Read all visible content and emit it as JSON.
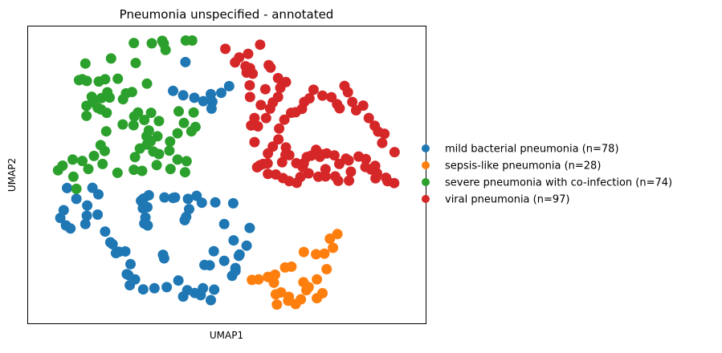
{
  "chart_data": {
    "type": "scatter",
    "title": "Pneumonia unspecified - annotated",
    "xlabel": "UMAP1",
    "ylabel": "UMAP2",
    "xlim": [
      0,
      100
    ],
    "ylim": [
      0,
      100
    ],
    "grid": false,
    "ticks_shown": false,
    "legend_position": "right, outside plot",
    "series": [
      {
        "name": "mild bacterial pneumonia (n=78)",
        "color": "#1f77b4",
        "points": [
          [
            38.9,
            90.6
          ],
          [
            35.6,
            80.2
          ],
          [
            38.3,
            78.6
          ],
          [
            41.3,
            77.7
          ],
          [
            43.7,
            76.5
          ],
          [
            45.7,
            79.0
          ],
          [
            46.1,
            76.3
          ],
          [
            45.9,
            73.8
          ],
          [
            48.5,
            79.5
          ],
          [
            50.6,
            81.9
          ],
          [
            7.2,
            45.1
          ],
          [
            9.7,
            41.2
          ],
          [
            6.3,
            37.1
          ],
          [
            5.4,
            34.3
          ],
          [
            6.9,
            31.6
          ],
          [
            8.1,
            30.5
          ],
          [
            12.6,
            38.8
          ],
          [
            12.5,
            35.1
          ],
          [
            12.1,
            32.1
          ],
          [
            14.0,
            45.2
          ],
          [
            15.6,
            42.8
          ],
          [
            15.4,
            35.5
          ],
          [
            17.4,
            29.4
          ],
          [
            19.4,
            24.8
          ],
          [
            18.8,
            25.5
          ],
          [
            20.3,
            21.6
          ],
          [
            21.1,
            22.1
          ],
          [
            22.8,
            22.2
          ],
          [
            27.0,
            40.5
          ],
          [
            27.7,
            41.3
          ],
          [
            27.5,
            37.8
          ],
          [
            28.7,
            38.2
          ],
          [
            29.1,
            42.5
          ],
          [
            28.2,
            34.5
          ],
          [
            27.9,
            32.3
          ],
          [
            28.8,
            31.6
          ],
          [
            33.3,
            41.7
          ],
          [
            35.6,
            41.5
          ],
          [
            36.1,
            41.7
          ],
          [
            39.6,
            41.2
          ],
          [
            41.9,
            42.3
          ],
          [
            39.9,
            37.5
          ],
          [
            39.1,
            34.7
          ],
          [
            38.7,
            33.5
          ],
          [
            43.3,
            39.8
          ],
          [
            46.9,
            39.9
          ],
          [
            51.7,
            39.6
          ],
          [
            49.3,
            32.1
          ],
          [
            51.8,
            26.2
          ],
          [
            53.2,
            20.6
          ],
          [
            55.3,
            24.3
          ],
          [
            56.1,
            30.7
          ],
          [
            53.4,
            21.1
          ],
          [
            52.3,
            16.2
          ],
          [
            52.3,
            15.2
          ],
          [
            51.4,
            13.4
          ],
          [
            49.3,
            18.8
          ],
          [
            46.5,
            22.3
          ],
          [
            44.0,
            17.3
          ],
          [
            45.4,
            17.2
          ],
          [
            43.6,
            8.9
          ],
          [
            45.7,
            4.6
          ],
          [
            46.6,
            8.4
          ],
          [
            43.0,
            6.4
          ],
          [
            41.4,
            7.2
          ],
          [
            39.4,
            8.2
          ],
          [
            38.3,
            5.9
          ],
          [
            33.9,
            9.3
          ],
          [
            30.6,
            8.9
          ],
          [
            27.6,
            8.5
          ],
          [
            24.0,
            10.0
          ],
          [
            23.6,
            13.7
          ],
          [
            24.2,
            17.6
          ],
          [
            23.2,
            14.0
          ],
          [
            25.4,
            12.1
          ],
          [
            33.2,
            19.7
          ],
          [
            32.9,
            21.0
          ],
          [
            37.0,
            11.7
          ]
        ]
      },
      {
        "name": "sepsis-like pneumonia (n=28)",
        "color": "#ff7f0e",
        "points": [
          [
            77.6,
            26.8
          ],
          [
            79.6,
            28.5
          ],
          [
            78.4,
            23.5
          ],
          [
            76.1,
            21.4
          ],
          [
            73.9,
            21.2
          ],
          [
            70.6,
            22.0
          ],
          [
            67.3,
            16.7
          ],
          [
            65.6,
            16.4
          ],
          [
            62.9,
            13.8
          ],
          [
            61.2,
            12.9
          ],
          [
            58.5,
            12.1
          ],
          [
            56.7,
            11.9
          ],
          [
            61.0,
            13.0
          ],
          [
            62.6,
            10.9
          ],
          [
            64.5,
            7.4
          ],
          [
            66.6,
            5.8
          ],
          [
            66.4,
            4.4
          ],
          [
            63.1,
            6.7
          ],
          [
            63.4,
            3.0
          ],
          [
            68.4,
            3.2
          ],
          [
            69.8,
            4.9
          ],
          [
            70.5,
            11.1
          ],
          [
            71.9,
            9.3
          ],
          [
            71.3,
            8.2
          ],
          [
            74.1,
            12.1
          ],
          [
            75.6,
            7.1
          ],
          [
            74.1,
            5.3
          ],
          [
            76.7,
            15.8
          ]
        ]
      },
      {
        "name": "severe pneumonia with co-infection (n=74)",
        "color": "#2ca02c",
        "points": [
          [
            25.1,
            97.5
          ],
          [
            29.9,
            97.4
          ],
          [
            32.7,
            98.3
          ],
          [
            33.6,
            95.0
          ],
          [
            33.1,
            97.3
          ],
          [
            39.0,
            98.4
          ],
          [
            40.7,
            98.4
          ],
          [
            12.1,
            90.1
          ],
          [
            19.0,
            91.9
          ],
          [
            25.6,
            90.3
          ],
          [
            11.3,
            84.4
          ],
          [
            10.4,
            84.1
          ],
          [
            12.5,
            83.8
          ],
          [
            15.7,
            83.6
          ],
          [
            17.4,
            84.4
          ],
          [
            20.8,
            84.6
          ],
          [
            22.2,
            77.2
          ],
          [
            23.0,
            79.3
          ],
          [
            24.6,
            79.8
          ],
          [
            28.6,
            82.8
          ],
          [
            26.2,
            72.4
          ],
          [
            29.7,
            72.3
          ],
          [
            25.2,
            71.0
          ],
          [
            22.1,
            68.1
          ],
          [
            25.0,
            67.8
          ],
          [
            27.9,
            69.7
          ],
          [
            31.8,
            69.3
          ],
          [
            29.1,
            65.9
          ],
          [
            28.5,
            63.8
          ],
          [
            29.6,
            62.0
          ],
          [
            31.4,
            63.8
          ],
          [
            28.6,
            60.8
          ],
          [
            26.7,
            59.4
          ],
          [
            30.3,
            58.3
          ],
          [
            31.8,
            57.4
          ],
          [
            34.6,
            58.6
          ],
          [
            34.8,
            61.9
          ],
          [
            36.8,
            64.9
          ],
          [
            38.5,
            68.6
          ],
          [
            41.6,
            67.2
          ],
          [
            41.1,
            72.4
          ],
          [
            37.1,
            72.8
          ],
          [
            40.5,
            65.6
          ],
          [
            36.8,
            55.4
          ],
          [
            39.2,
            54.8
          ],
          [
            38.8,
            50.8
          ],
          [
            34.9,
            52.0
          ],
          [
            31.2,
            53.4
          ],
          [
            27.3,
            51.3
          ],
          [
            25.1,
            51.7
          ],
          [
            16.4,
            77.6
          ],
          [
            13.8,
            78.1
          ],
          [
            14.1,
            76.1
          ],
          [
            12.4,
            74.8
          ],
          [
            15.4,
            74.1
          ],
          [
            16.3,
            73.5
          ],
          [
            17.8,
            72.3
          ],
          [
            18.6,
            77.8
          ],
          [
            18.0,
            79.7
          ],
          [
            12.4,
            71.2
          ],
          [
            17.7,
            65.6
          ],
          [
            16.2,
            60.6
          ],
          [
            17.3,
            58.5
          ],
          [
            14.4,
            56.7
          ],
          [
            11.3,
            54.9
          ],
          [
            8.7,
            55.4
          ],
          [
            6.0,
            53.2
          ],
          [
            4.8,
            51.5
          ],
          [
            8.9,
            49.2
          ],
          [
            9.7,
            44.8
          ],
          [
            12.9,
            52.0
          ],
          [
            16.7,
            53.8
          ],
          [
            20.7,
            50.6
          ],
          [
            25.4,
            56.3
          ]
        ]
      },
      {
        "name": "viral pneumonia (n=97)",
        "color": "#d62728",
        "points": [
          [
            49.6,
            95.4
          ],
          [
            53.3,
            92.3
          ],
          [
            55.0,
            89.1
          ],
          [
            56.2,
            88.4
          ],
          [
            56.9,
            86.4
          ],
          [
            56.1,
            82.2
          ],
          [
            55.3,
            86.8
          ],
          [
            52.2,
            90.5
          ],
          [
            55.7,
            93.6
          ],
          [
            58.9,
            96.9
          ],
          [
            61.2,
            89.5
          ],
          [
            61.7,
            88.6
          ],
          [
            63.7,
            84.8
          ],
          [
            65.8,
            83.4
          ],
          [
            64.3,
            81.3
          ],
          [
            63.7,
            78.0
          ],
          [
            60.3,
            80.8
          ],
          [
            62.3,
            76.0
          ],
          [
            61.6,
            73.8
          ],
          [
            56.2,
            78.0
          ],
          [
            59.1,
            75.1
          ],
          [
            60.5,
            70.4
          ],
          [
            57.4,
            70.4
          ],
          [
            58.3,
            67.4
          ],
          [
            56.5,
            67.7
          ],
          [
            57.4,
            61.7
          ],
          [
            62.3,
            60.1
          ],
          [
            63.8,
            62.7
          ],
          [
            61.0,
            57.6
          ],
          [
            65.8,
            59.8
          ],
          [
            65.7,
            57.1
          ],
          [
            66.7,
            57.0
          ],
          [
            64.8,
            54.4
          ],
          [
            68.6,
            54.1
          ],
          [
            70.6,
            54.1
          ],
          [
            71.4,
            56.3
          ],
          [
            72.6,
            56.8
          ],
          [
            73.9,
            58.9
          ],
          [
            75.0,
            57.4
          ],
          [
            74.9,
            56.4
          ],
          [
            76.7,
            57.6
          ],
          [
            78.8,
            56.9
          ],
          [
            80.1,
            53.8
          ],
          [
            81.9,
            55.7
          ],
          [
            82.6,
            55.1
          ],
          [
            85.3,
            56.5
          ],
          [
            87.2,
            55.6
          ],
          [
            89.7,
            53.1
          ],
          [
            88.6,
            51.8
          ],
          [
            89.8,
            48.6
          ],
          [
            93.0,
            47.6
          ],
          [
            94.8,
            46.9
          ],
          [
            92.6,
            48.8
          ],
          [
            90.2,
            50.5
          ],
          [
            87.1,
            52.7
          ],
          [
            83.2,
            51.0
          ],
          [
            82.7,
            47.8
          ],
          [
            79.8,
            47.7
          ],
          [
            79.0,
            49.3
          ],
          [
            76.4,
            49.3
          ],
          [
            76.4,
            51.9
          ],
          [
            74.5,
            49.2
          ],
          [
            71.9,
            50.4
          ],
          [
            70.3,
            52.7
          ],
          [
            69.7,
            49.1
          ],
          [
            68.7,
            47.0
          ],
          [
            66.7,
            47.6
          ],
          [
            65.0,
            48.7
          ],
          [
            63.1,
            50.0
          ],
          [
            61.0,
            50.2
          ],
          [
            60.9,
            54.0
          ],
          [
            59.7,
            53.8
          ],
          [
            58.8,
            53.3
          ],
          [
            58.1,
            52.6
          ],
          [
            64.0,
            66.6
          ],
          [
            65.4,
            69.8
          ],
          [
            67.2,
            72.3
          ],
          [
            68.4,
            72.5
          ],
          [
            70.1,
            73.7
          ],
          [
            70.7,
            76.2
          ],
          [
            72.1,
            77.5
          ],
          [
            73.2,
            80.6
          ],
          [
            75.6,
            78.5
          ],
          [
            78.0,
            77.9
          ],
          [
            79.5,
            75.4
          ],
          [
            80.2,
            73.9
          ],
          [
            82.4,
            79.7
          ],
          [
            81.5,
            82.0
          ],
          [
            83.6,
            76.2
          ],
          [
            84.6,
            73.2
          ],
          [
            86.5,
            74.9
          ],
          [
            88.0,
            70.4
          ],
          [
            89.6,
            67.6
          ],
          [
            90.5,
            65.5
          ],
          [
            92.2,
            64.7
          ],
          [
            91.6,
            61.4
          ],
          [
            94.9,
            58.1
          ]
        ]
      }
    ]
  }
}
